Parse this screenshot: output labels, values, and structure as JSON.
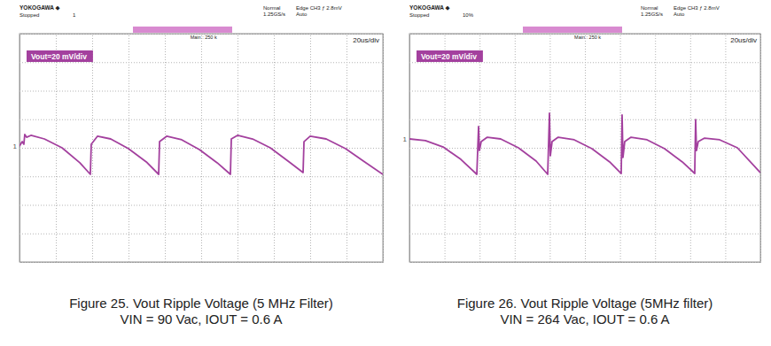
{
  "chart_data": [
    {
      "type": "line",
      "title": "Figure 25. Vout Ripple Voltage (5 MHz Filter)",
      "subtitle": "VIN = 90 Vac, IOUT = 0.6 A",
      "annotations": [
        "YOKOGAWA ◆",
        "Stopped",
        "1",
        "Normal",
        "1.25GS/s",
        "Edge CH3 ƒ 2.8mV",
        "Auto",
        "Main : 250 k",
        "20us/div"
      ],
      "trace_label": "1",
      "x": [
        0,
        1.5,
        2.4,
        2.9,
        3.9,
        6.3,
        13.7,
        23.4,
        33.2,
        39.0,
        39.5,
        42.9,
        50.2,
        60.0,
        69.8,
        76.6,
        77.1,
        81.0,
        89.3,
        99.0,
        108.8,
        116.1,
        116.6,
        120.0,
        128.3,
        138.0,
        147.8,
        156.1,
        156.6,
        160.0,
        168.8,
        179.5,
        189.3,
        200
      ],
      "series": [
        {
          "name": "Vout=20 mV/div",
          "color": "#a3409e",
          "values": [
            1.2,
            4.3,
            2.5,
            9.3,
            7.4,
            8.7,
            6.2,
            0,
            -10.5,
            -18.6,
            2.5,
            8.1,
            6.2,
            -0.6,
            -9.9,
            -18.6,
            4.3,
            8.1,
            5.6,
            -1.2,
            -10.5,
            -18.6,
            6.2,
            8.7,
            6.2,
            0,
            -9.3,
            -17.4,
            4.3,
            8.1,
            6.2,
            -0.6,
            -9.3,
            -18.6
          ]
        }
      ],
      "xlim": [
        0,
        200
      ],
      "xticks": [
        0,
        20,
        40,
        60,
        80,
        100,
        120,
        140,
        160,
        180,
        200
      ],
      "ylim": [
        -80,
        80
      ],
      "yticks": [
        -80,
        -60,
        -40,
        -20,
        0,
        20,
        40,
        60,
        80
      ],
      "grid": true,
      "tick_labels": false
    },
    {
      "type": "line",
      "title": "Figure 26. Vout Ripple Voltage (5MHz filter)",
      "subtitle": "VIN = 264 Vac, IOUT = 0.6 A",
      "annotations": [
        "YOKOGAWA ◆",
        "Stopped",
        "10%",
        "Normal",
        "1.25GS/s",
        "Edge CH3 ƒ 2.8mV",
        "Auto",
        "Main : 250 k",
        "20us/div"
      ],
      "trace_label": "1",
      "x": [
        0,
        9.1,
        19.2,
        29.3,
        38.4,
        39.4,
        39.9,
        40.9,
        44.4,
        52.0,
        62.1,
        72.2,
        78.8,
        79.8,
        80.3,
        81.3,
        84.8,
        93.9,
        104.0,
        114.1,
        120.7,
        121.2,
        121.7,
        122.7,
        126.3,
        135.4,
        145.4,
        155.5,
        162.6,
        163.1,
        163.6,
        164.6,
        168.2,
        176.8,
        186.9,
        200
      ],
      "series": [
        {
          "name": "Vout=20 mV/div",
          "color": "#a3409e",
          "values": [
            6.2,
            5.0,
            0.6,
            -8.1,
            -18.6,
            14.9,
            -1.9,
            4.3,
            7.4,
            6.2,
            0,
            -9.3,
            -18.6,
            24.2,
            -5.6,
            4.3,
            7.4,
            5.6,
            -0.6,
            -9.9,
            -18.0,
            23.0,
            -6.8,
            4.3,
            7.4,
            5.6,
            -0.6,
            -9.9,
            -18.0,
            19.8,
            -1.9,
            4.3,
            6.8,
            5.6,
            0,
            -17.4
          ]
        }
      ],
      "xlim": [
        0,
        200
      ],
      "xticks": [
        0,
        20,
        40,
        60,
        80,
        100,
        120,
        140,
        160,
        180,
        200
      ],
      "ylim": [
        -80,
        80
      ],
      "yticks": [
        -80,
        -60,
        -40,
        -20,
        0,
        20,
        40,
        60,
        80
      ],
      "grid": true,
      "tick_labels": false
    }
  ]
}
